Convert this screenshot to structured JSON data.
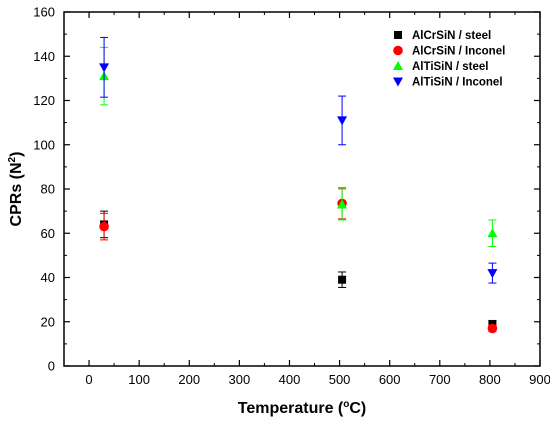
{
  "chart_data": {
    "type": "scatter",
    "title": "",
    "xlabel": "Temperature (",
    "xlabel_unit": "o",
    "xlabel_suffix": "C)",
    "ylabel": "CPRs (N",
    "ylabel_unit": "2",
    "ylabel_suffix": ")",
    "xlim": [
      -50,
      900
    ],
    "ylim": [
      0,
      160
    ],
    "xticks": [
      0,
      100,
      200,
      300,
      400,
      500,
      600,
      700,
      800,
      900
    ],
    "yticks": [
      0,
      20,
      40,
      60,
      80,
      100,
      120,
      140,
      160
    ],
    "grid": false,
    "legend_position": "top-right",
    "series": [
      {
        "name": "AlCrSiN / steel",
        "marker": "square",
        "color": "#000000",
        "points": [
          {
            "x": 30,
            "y": 64,
            "err": 6
          },
          {
            "x": 505,
            "y": 39,
            "err": 3.5
          },
          {
            "x": 805,
            "y": 19,
            "err": 1.5
          }
        ]
      },
      {
        "name": "AlCrSiN / Inconel",
        "marker": "circle",
        "color": "#ff0000",
        "points": [
          {
            "x": 30,
            "y": 63,
            "err": 6
          },
          {
            "x": 505,
            "y": 73.5,
            "err": 7
          },
          {
            "x": 805,
            "y": 17,
            "err": 1.5
          }
        ]
      },
      {
        "name": "AlTiSiN / steel",
        "marker": "triangle-up",
        "color": "#00ff00",
        "points": [
          {
            "x": 30,
            "y": 131,
            "err": 13
          },
          {
            "x": 505,
            "y": 73,
            "err": 7
          },
          {
            "x": 805,
            "y": 60,
            "err": 6
          }
        ]
      },
      {
        "name": "AlTiSiN / Inconel",
        "marker": "triangle-down",
        "color": "#0000ff",
        "points": [
          {
            "x": 30,
            "y": 135,
            "err": 13.5
          },
          {
            "x": 505,
            "y": 111,
            "err": 11
          },
          {
            "x": 805,
            "y": 42,
            "err": 4.5
          }
        ]
      }
    ]
  }
}
